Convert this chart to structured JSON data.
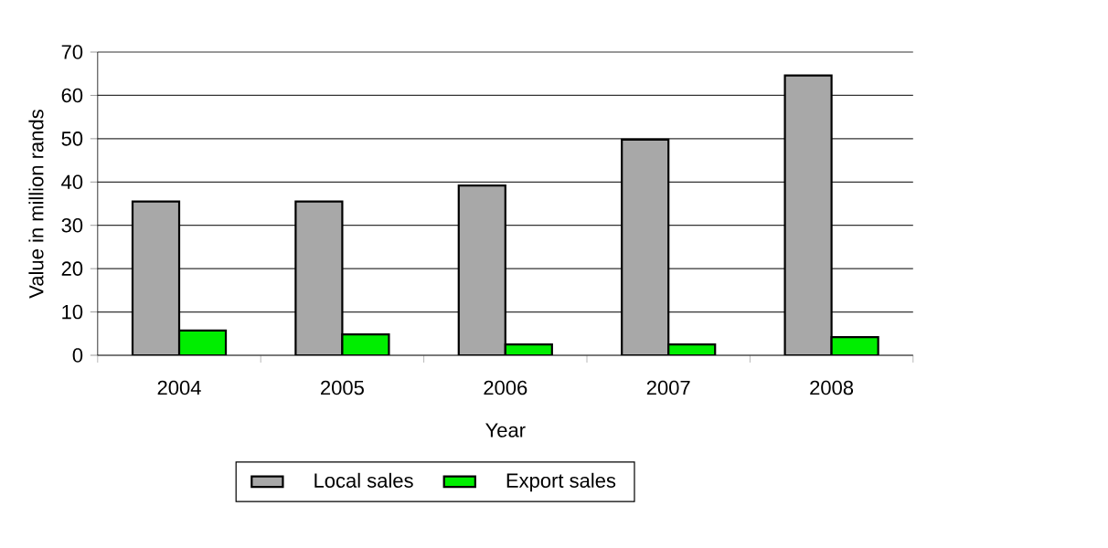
{
  "chart_data": {
    "type": "bar",
    "xlabel": "Year",
    "ylabel": "Value in million rands",
    "categories": [
      "2004",
      "2005",
      "2006",
      "2007",
      "2008"
    ],
    "series": [
      {
        "name": "Local sales",
        "color": "#a8a8a8",
        "values": [
          35.5,
          35.5,
          39.2,
          49.8,
          64.6
        ]
      },
      {
        "name": "Export sales",
        "color": "#00ee00",
        "values": [
          5.7,
          4.8,
          2.5,
          2.5,
          4.2
        ]
      }
    ],
    "ylim": [
      0,
      70
    ],
    "yticks": [
      0,
      10,
      20,
      30,
      40,
      50,
      60,
      70
    ],
    "grid": "y",
    "legend": "bottom"
  }
}
